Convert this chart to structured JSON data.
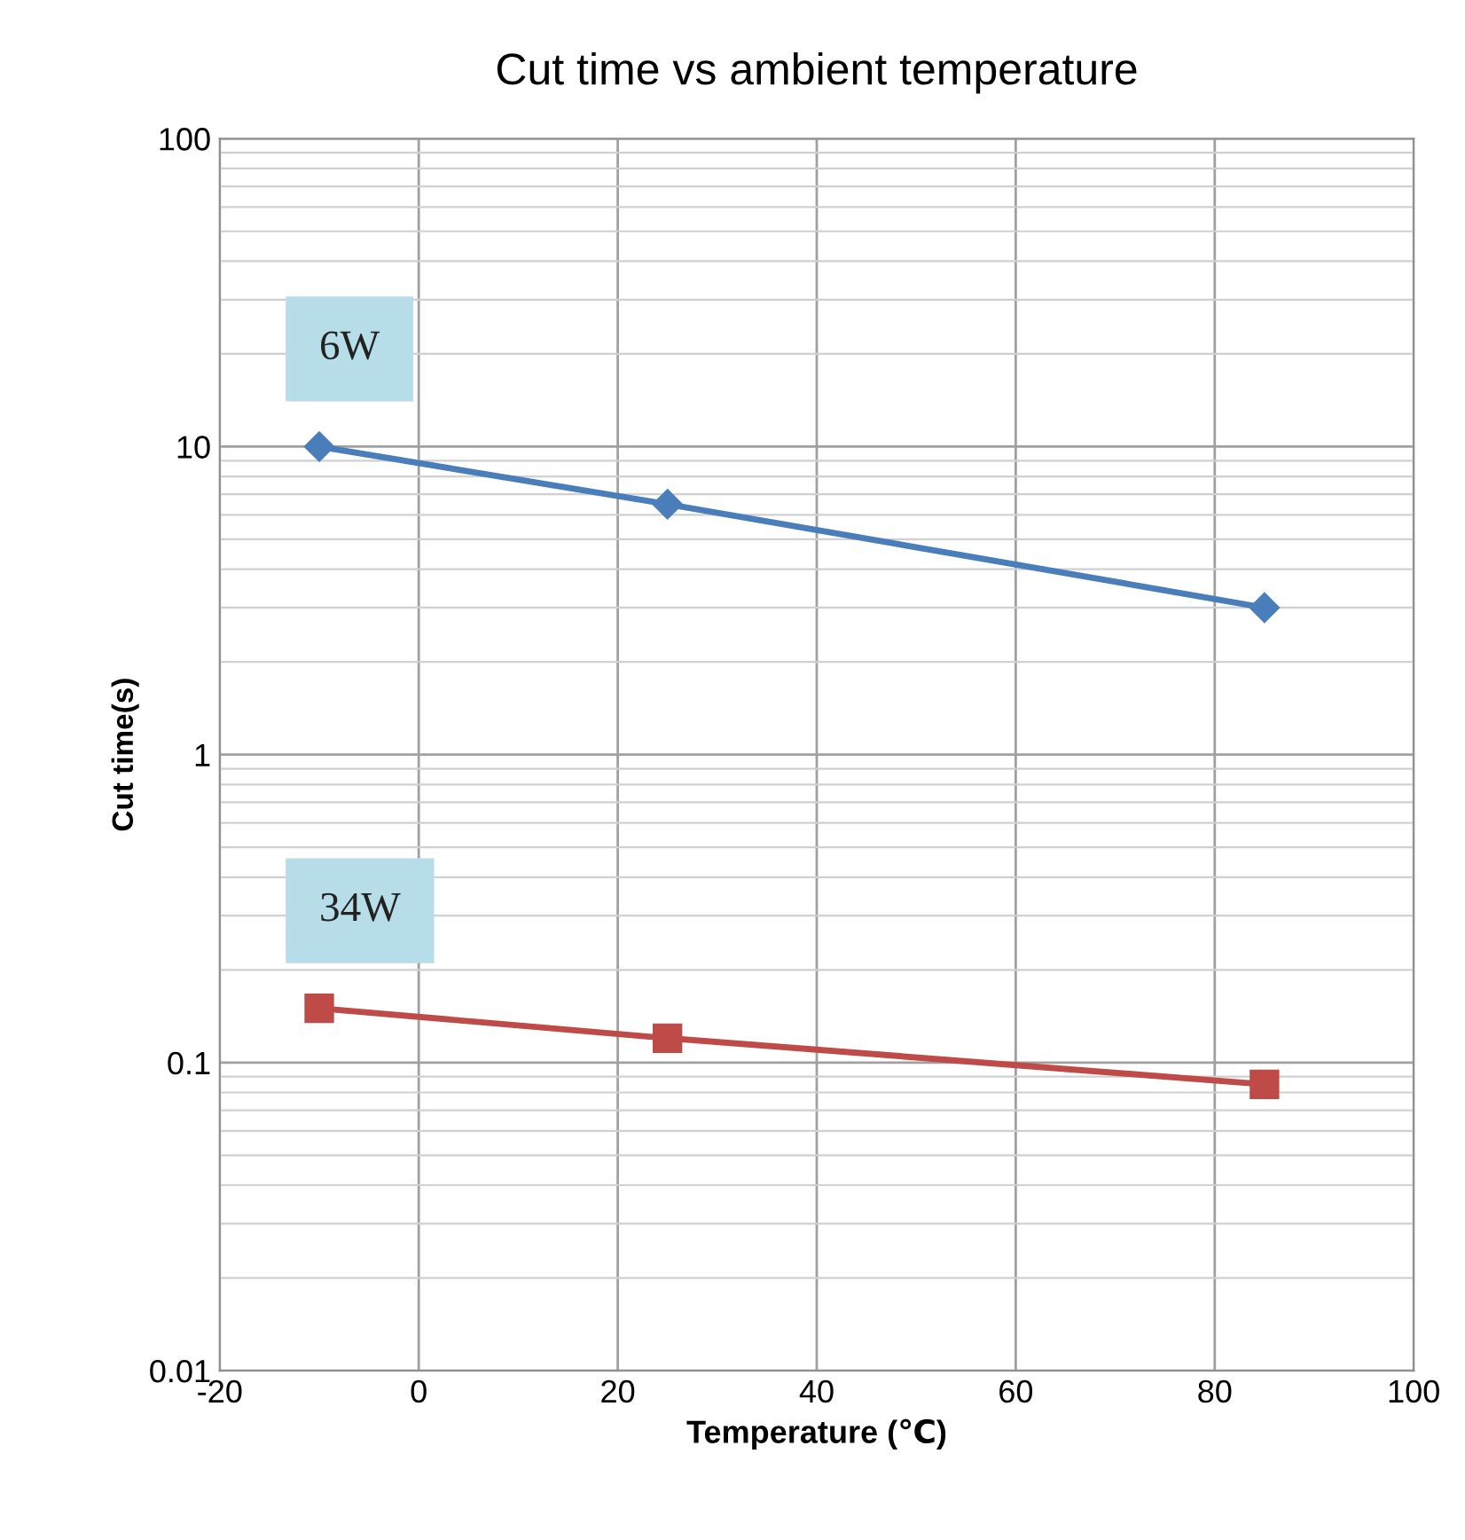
{
  "chart_data": {
    "type": "line",
    "title": "Cut time vs ambient temperature",
    "xlabel": "Temperature (℃)",
    "ylabel": "Cut time(s)",
    "series": [
      {
        "name": "6W",
        "color": "#4a7ebb",
        "marker": "diamond",
        "x": [
          -10,
          25,
          85
        ],
        "values": [
          10,
          6.5,
          3.0
        ]
      },
      {
        "name": "34W",
        "color": "#be4b48",
        "marker": "square",
        "x": [
          -10,
          25,
          85
        ],
        "values": [
          0.15,
          0.12,
          0.085
        ]
      }
    ],
    "xlim": [
      -20,
      100
    ],
    "xticks": [
      -20,
      0,
      20,
      40,
      60,
      80,
      100
    ],
    "ylim": [
      0.01,
      100
    ],
    "yticks": [
      0.01,
      0.1,
      1,
      10,
      100
    ],
    "log": "y",
    "grid": true,
    "legend": false,
    "line_style": "solid"
  }
}
